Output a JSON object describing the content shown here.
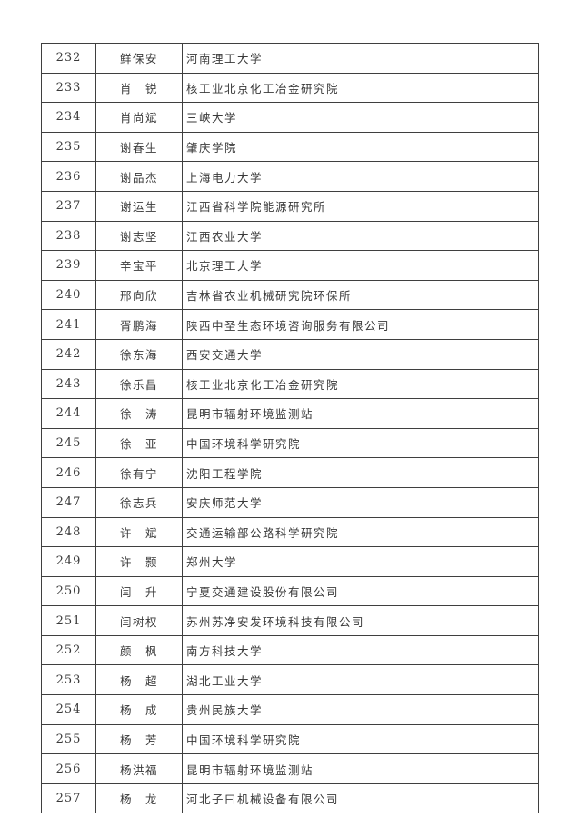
{
  "table": {
    "rows": [
      {
        "num": "232",
        "name": "鲜保安",
        "institution": "河南理工大学"
      },
      {
        "num": "233",
        "name": "肖　锐",
        "institution": "核工业北京化工冶金研究院"
      },
      {
        "num": "234",
        "name": "肖尚斌",
        "institution": "三峡大学"
      },
      {
        "num": "235",
        "name": "谢春生",
        "institution": "肇庆学院"
      },
      {
        "num": "236",
        "name": "谢品杰",
        "institution": "上海电力大学"
      },
      {
        "num": "237",
        "name": "谢运生",
        "institution": "江西省科学院能源研究所"
      },
      {
        "num": "238",
        "name": "谢志坚",
        "institution": "江西农业大学"
      },
      {
        "num": "239",
        "name": "辛宝平",
        "institution": "北京理工大学"
      },
      {
        "num": "240",
        "name": "邢向欣",
        "institution": "吉林省农业机械研究院环保所"
      },
      {
        "num": "241",
        "name": "胥鹏海",
        "institution": "陕西中圣生态环境咨询服务有限公司"
      },
      {
        "num": "242",
        "name": "徐东海",
        "institution": "西安交通大学"
      },
      {
        "num": "243",
        "name": "徐乐昌",
        "institution": "核工业北京化工冶金研究院"
      },
      {
        "num": "244",
        "name": "徐　涛",
        "institution": "昆明市辐射环境监测站"
      },
      {
        "num": "245",
        "name": "徐　亚",
        "institution": "中国环境科学研究院"
      },
      {
        "num": "246",
        "name": "徐有宁",
        "institution": "沈阳工程学院"
      },
      {
        "num": "247",
        "name": "徐志兵",
        "institution": "安庆师范大学"
      },
      {
        "num": "248",
        "name": "许　斌",
        "institution": "交通运输部公路科学研究院"
      },
      {
        "num": "249",
        "name": "许　颢",
        "institution": "郑州大学"
      },
      {
        "num": "250",
        "name": "闫　升",
        "institution": "宁夏交通建设股份有限公司"
      },
      {
        "num": "251",
        "name": "闫树权",
        "institution": "苏州苏净安发环境科技有限公司"
      },
      {
        "num": "252",
        "name": "颜　枫",
        "institution": "南方科技大学"
      },
      {
        "num": "253",
        "name": "杨　超",
        "institution": "湖北工业大学"
      },
      {
        "num": "254",
        "name": "杨　成",
        "institution": "贵州民族大学"
      },
      {
        "num": "255",
        "name": "杨　芳",
        "institution": "中国环境科学研究院"
      },
      {
        "num": "256",
        "name": "杨洪福",
        "institution": "昆明市辐射环境监测站"
      },
      {
        "num": "257",
        "name": "杨　龙",
        "institution": "河北子曰机械设备有限公司"
      }
    ]
  },
  "colors": {
    "text": "#3a3a3a",
    "border": "#3f3f3f",
    "background": "#ffffff"
  }
}
